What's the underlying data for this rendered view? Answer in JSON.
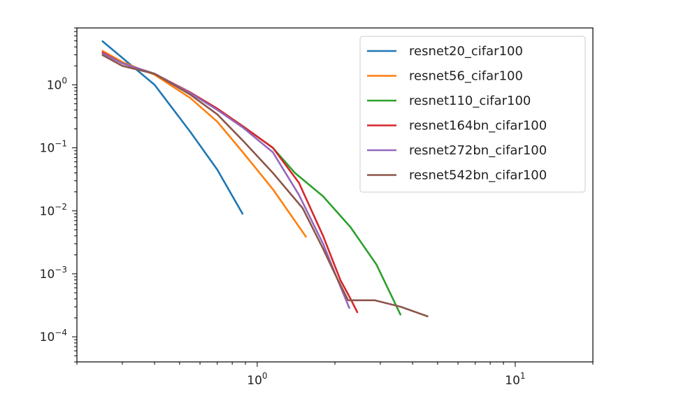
{
  "chart_data": {
    "type": "line",
    "title": "",
    "xlabel": "",
    "ylabel": "",
    "xscale": "log",
    "yscale": "log",
    "xlim": [
      0.2,
      20
    ],
    "ylim": [
      4e-05,
      8
    ],
    "grid": false,
    "legend_position": "top-right",
    "x_ticks": [
      {
        "base": "10",
        "exp": "0",
        "value": 1
      },
      {
        "base": "10",
        "exp": "1",
        "value": 10
      }
    ],
    "y_ticks": [
      {
        "base": "10",
        "exp": "0",
        "value": 1
      },
      {
        "base": "10",
        "exp": "−1",
        "value": 0.1
      },
      {
        "base": "10",
        "exp": "−2",
        "value": 0.01
      },
      {
        "base": "10",
        "exp": "−3",
        "value": 0.001
      },
      {
        "base": "10",
        "exp": "−4",
        "value": 0.0001
      }
    ],
    "series": [
      {
        "name": "resnet20_cifar100",
        "color": "#1f77b4",
        "points": [
          [
            0.25,
            5.0
          ],
          [
            0.4,
            1.0
          ],
          [
            0.55,
            0.18
          ],
          [
            0.7,
            0.045
          ],
          [
            0.88,
            0.0088
          ]
        ]
      },
      {
        "name": "resnet56_cifar100",
        "color": "#ff7f0e",
        "points": [
          [
            0.25,
            3.5
          ],
          [
            0.3,
            2.3
          ],
          [
            0.4,
            1.45
          ],
          [
            0.55,
            0.62
          ],
          [
            0.7,
            0.26
          ],
          [
            0.88,
            0.085
          ],
          [
            1.15,
            0.022
          ],
          [
            1.55,
            0.0038
          ]
        ]
      },
      {
        "name": "resnet110_cifar100",
        "color": "#2ca02c",
        "points": [
          [
            0.25,
            3.2
          ],
          [
            0.3,
            2.2
          ],
          [
            0.4,
            1.5
          ],
          [
            0.55,
            0.75
          ],
          [
            0.7,
            0.41
          ],
          [
            0.88,
            0.22
          ],
          [
            1.15,
            0.1
          ],
          [
            1.4,
            0.04
          ],
          [
            1.8,
            0.017
          ],
          [
            2.3,
            0.0055
          ],
          [
            2.9,
            0.0014
          ],
          [
            3.6,
            0.00022
          ]
        ]
      },
      {
        "name": "resnet164bn_cifar100",
        "color": "#d62728",
        "points": [
          [
            0.25,
            3.3
          ],
          [
            0.3,
            2.2
          ],
          [
            0.4,
            1.5
          ],
          [
            0.55,
            0.76
          ],
          [
            0.7,
            0.42
          ],
          [
            0.88,
            0.22
          ],
          [
            1.15,
            0.1
          ],
          [
            1.45,
            0.028
          ],
          [
            1.8,
            0.004
          ],
          [
            2.1,
            0.0008
          ],
          [
            2.3,
            0.0004
          ],
          [
            2.45,
            0.00024
          ]
        ]
      },
      {
        "name": "resnet272bn_cifar100",
        "color": "#9467bd",
        "points": [
          [
            0.25,
            3.2
          ],
          [
            0.3,
            2.2
          ],
          [
            0.4,
            1.5
          ],
          [
            0.55,
            0.74
          ],
          [
            0.7,
            0.4
          ],
          [
            0.88,
            0.21
          ],
          [
            1.15,
            0.085
          ],
          [
            1.45,
            0.018
          ],
          [
            1.8,
            0.003
          ],
          [
            2.05,
            0.0008
          ],
          [
            2.28,
            0.00028
          ]
        ]
      },
      {
        "name": "resnet542bn_cifar100",
        "color": "#8c564b",
        "points": [
          [
            0.25,
            3.0
          ],
          [
            0.3,
            2.0
          ],
          [
            0.4,
            1.5
          ],
          [
            0.55,
            0.7
          ],
          [
            0.7,
            0.34
          ],
          [
            0.88,
            0.13
          ],
          [
            1.15,
            0.04
          ],
          [
            1.5,
            0.011
          ],
          [
            1.8,
            0.0025
          ],
          [
            2.0,
            0.001
          ],
          [
            2.25,
            0.00038
          ],
          [
            2.85,
            0.00038
          ],
          [
            3.6,
            0.0003
          ],
          [
            4.6,
            0.00021
          ]
        ]
      }
    ]
  }
}
